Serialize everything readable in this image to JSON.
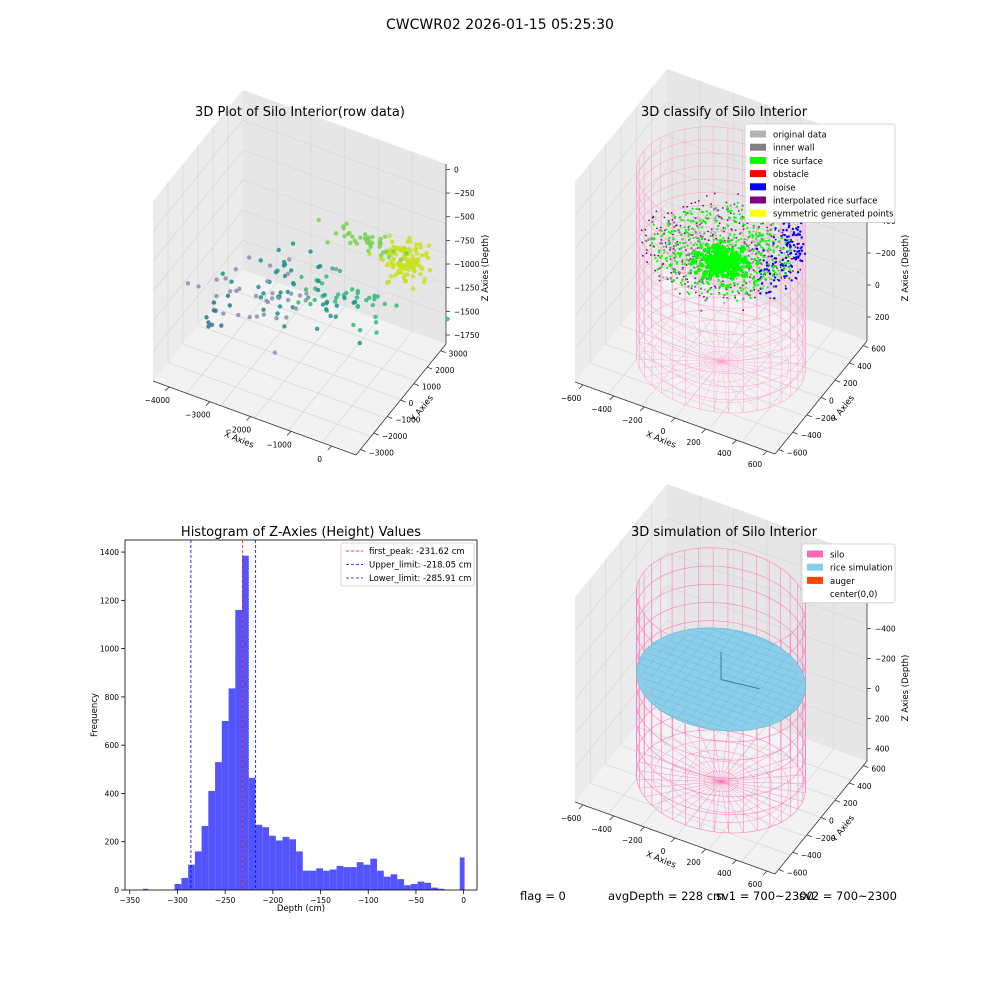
{
  "figure_title": "CWCWR02 2026-01-15 05:25:30",
  "status": {
    "flag": "flag = 0",
    "avg_depth": "avgDepth = 228 cm",
    "sv1": "sv1 = 700~2300",
    "sv2": "sv2 = 700~2300"
  },
  "colors": {
    "axis_text": "#000000",
    "pane": "#f2f2f2",
    "grid": "#d9d9d9",
    "silo": "#ff69b4",
    "rice_sim": "#87ceeb",
    "hist_bar": "#4b4bff",
    "peak_line": "#ff0000",
    "limit_line": "#0000ff"
  },
  "chart_data": [
    {
      "type": "scatter",
      "title": "3D Plot of Silo Interior(row data)",
      "xlabel": "X Axies",
      "ylabel": "Y Axies",
      "zlabel": "Z Axies (Depth)",
      "x_ticks": [
        "−4000",
        "−3000",
        "−2000",
        "−1000",
        "0"
      ],
      "y_ticks": [
        "−3000",
        "−2000",
        "−1000",
        "0",
        "1000",
        "2000",
        "3000"
      ],
      "z_ticks": [
        "0",
        "−250",
        "−500",
        "−750",
        "−1000",
        "−1250",
        "−1500",
        "−1750"
      ],
      "xlim": [
        -4500,
        500
      ],
      "ylim": [
        -3200,
        3400
      ],
      "zlim": [
        -1850,
        100
      ],
      "colormap": "viridis",
      "clusters": [
        {
          "x": 150,
          "y": 1400,
          "z": -650,
          "count": 120,
          "spread": [
            260,
            300,
            90
          ],
          "color": "#c8e020"
        },
        {
          "x": -700,
          "y": 1100,
          "z": -520,
          "count": 40,
          "spread": [
            500,
            200,
            60
          ],
          "color": "#7ad151"
        },
        {
          "x": -900,
          "y": 500,
          "z": -1050,
          "count": 40,
          "spread": [
            700,
            300,
            120
          ],
          "color": "#35b779"
        },
        {
          "x": -2000,
          "y": 300,
          "z": -1100,
          "count": 45,
          "spread": [
            700,
            500,
            200
          ],
          "color": "#21918c"
        },
        {
          "x": -2800,
          "y": -200,
          "z": -1150,
          "count": 35,
          "spread": [
            600,
            500,
            250
          ],
          "color": "#8a8fb0"
        },
        {
          "x": -3900,
          "y": -600,
          "z": -1500,
          "count": 10,
          "spread": [
            200,
            400,
            150
          ],
          "color": "#2c728e"
        }
      ]
    },
    {
      "type": "scatter",
      "title": "3D classify of Silo Interior",
      "xlabel": "X Axies",
      "ylabel": "Y Axies",
      "zlabel": "Z Axies (Depth)",
      "x_ticks": [
        "−600",
        "−400",
        "−200",
        "0",
        "200",
        "400",
        "600"
      ],
      "y_ticks": [
        "−600",
        "−400",
        "−200",
        "0",
        "200",
        "400",
        "600"
      ],
      "z_ticks": [
        "200",
        "0",
        "−200",
        "−400",
        "−600",
        "−800"
      ],
      "xlim": [
        -650,
        650
      ],
      "ylim": [
        -650,
        650
      ],
      "zlim": [
        -900,
        300
      ],
      "silo_radius": 500,
      "silo_zrange": [
        -900,
        200
      ],
      "legend": {
        "placement": "top-right",
        "entries": [
          {
            "label": "original data",
            "color": "#b3b3b3"
          },
          {
            "label": "inner wall",
            "color": "#808080"
          },
          {
            "label": "rice surface",
            "color": "#00ff00"
          },
          {
            "label": "obstacle",
            "color": "#ff0000"
          },
          {
            "label": "noise",
            "color": "#0000ff"
          },
          {
            "label": "interpolated rice surface",
            "color": "#800080"
          },
          {
            "label": "symmetric generated points",
            "color": "#ffff00"
          }
        ]
      }
    },
    {
      "type": "bar",
      "title": "Histogram of Z-Axies (Height) Values",
      "xlabel": "Depth (cm)",
      "ylabel": "Frequency",
      "xlim": [
        -355,
        14
      ],
      "ylim": [
        0,
        1450
      ],
      "x_ticks": [
        -350,
        -300,
        -250,
        -200,
        -150,
        -100,
        -50,
        0
      ],
      "y_ticks": [
        0,
        200,
        400,
        600,
        800,
        1000,
        1200,
        1400
      ],
      "bin_width": 5,
      "bins": [
        [
          -336,
          5
        ],
        [
          -316,
          1
        ],
        [
          -305,
          1
        ],
        [
          -300,
          25
        ],
        [
          -295,
          50
        ],
        [
          -290,
          105
        ],
        [
          -285,
          160
        ],
        [
          -280,
          265
        ],
        [
          -275,
          410
        ],
        [
          -270,
          530
        ],
        [
          -265,
          700
        ],
        [
          -260,
          835
        ],
        [
          -255,
          1160
        ],
        [
          -250,
          1385
        ],
        [
          -245,
          465
        ],
        [
          -240,
          270
        ],
        [
          -235,
          260
        ],
        [
          -230,
          225
        ],
        [
          -225,
          205
        ],
        [
          -220,
          220
        ],
        [
          -215,
          210
        ],
        [
          -210,
          160
        ],
        [
          -205,
          80
        ],
        [
          -200,
          80
        ],
        [
          -195,
          90
        ],
        [
          -190,
          80
        ],
        [
          -185,
          85
        ],
        [
          -180,
          100
        ],
        [
          -175,
          95
        ],
        [
          -170,
          95
        ],
        [
          -165,
          115
        ],
        [
          -160,
          105
        ],
        [
          -155,
          130
        ],
        [
          -150,
          80
        ],
        [
          -145,
          55
        ],
        [
          -140,
          65
        ],
        [
          -135,
          45
        ],
        [
          -130,
          20
        ],
        [
          -125,
          25
        ],
        [
          -120,
          35
        ],
        [
          -115,
          30
        ],
        [
          -110,
          10
        ],
        [
          -105,
          5
        ],
        [
          -100,
          135
        ]
      ],
      "vlines": [
        {
          "x": -231.62,
          "label": "first_peak: -231.62 cm",
          "color": "#ff0000"
        },
        {
          "x": -218.05,
          "label": "Upper_limit: -218.05 cm",
          "color": "#0000ff"
        },
        {
          "x": -285.91,
          "label": "Lower_limit: -285.91 cm",
          "color": "#0000ff"
        }
      ],
      "legend": {
        "placement": "top-right"
      }
    },
    {
      "type": "surface",
      "title": "3D simulation of Silo Interior",
      "xlabel": "X Axies",
      "ylabel": "Y Axies",
      "zlabel": "Z Axies (Depth)",
      "x_ticks": [
        "−600",
        "−400",
        "−200",
        "0",
        "200",
        "400",
        "600"
      ],
      "y_ticks": [
        "−600",
        "−400",
        "−200",
        "0",
        "200",
        "400",
        "600"
      ],
      "z_ticks": [
        "400",
        "200",
        "0",
        "−200",
        "−400",
        "−600",
        "−800"
      ],
      "xlim": [
        -650,
        650
      ],
      "ylim": [
        -650,
        650
      ],
      "zlim": [
        -900,
        450
      ],
      "silo_radius": 500,
      "silo_zrange": [
        -900,
        300
      ],
      "rice_surface_depth": -228,
      "legend": {
        "placement": "top-right",
        "entries": [
          {
            "label": "silo",
            "color": "#ff69b4"
          },
          {
            "label": "rice simulation",
            "color": "#87ceeb"
          },
          {
            "label": "auger",
            "color": "#ff4500"
          },
          {
            "label": "center(0,0)",
            "color": "#ffffff"
          }
        ]
      }
    }
  ]
}
